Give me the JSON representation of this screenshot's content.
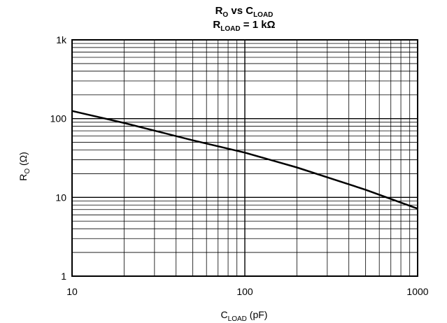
{
  "chart_data": {
    "type": "line",
    "title": {
      "line1": {
        "main": "R",
        "sub": "O",
        "middle": " vs C",
        "sub2": "LOAD"
      },
      "line2": {
        "main": "R",
        "sub": "LOAD",
        "rest": " = 1 kΩ"
      }
    },
    "xlabel": {
      "main": "C",
      "sub": "LOAD",
      "rest": " (pF)"
    },
    "ylabel": {
      "main": "R",
      "sub": "O",
      "rest": " (Ω)"
    },
    "xscale": "log",
    "yscale": "log",
    "xlim": [
      10,
      1000
    ],
    "ylim": [
      1,
      1000
    ],
    "x_ticks": [
      {
        "value": 10,
        "label": "10"
      },
      {
        "value": 100,
        "label": "100"
      },
      {
        "value": 1000,
        "label": "1000"
      }
    ],
    "y_ticks": [
      {
        "value": 1,
        "label": "1"
      },
      {
        "value": 10,
        "label": "10"
      },
      {
        "value": 100,
        "label": "100"
      },
      {
        "value": 1000,
        "label": "1k"
      }
    ],
    "grid": true,
    "series": [
      {
        "x": [
          10,
          20,
          50,
          100,
          200,
          500,
          1000
        ],
        "y": [
          125,
          88,
          53,
          37,
          24,
          12.5,
          7.2
        ]
      }
    ]
  }
}
